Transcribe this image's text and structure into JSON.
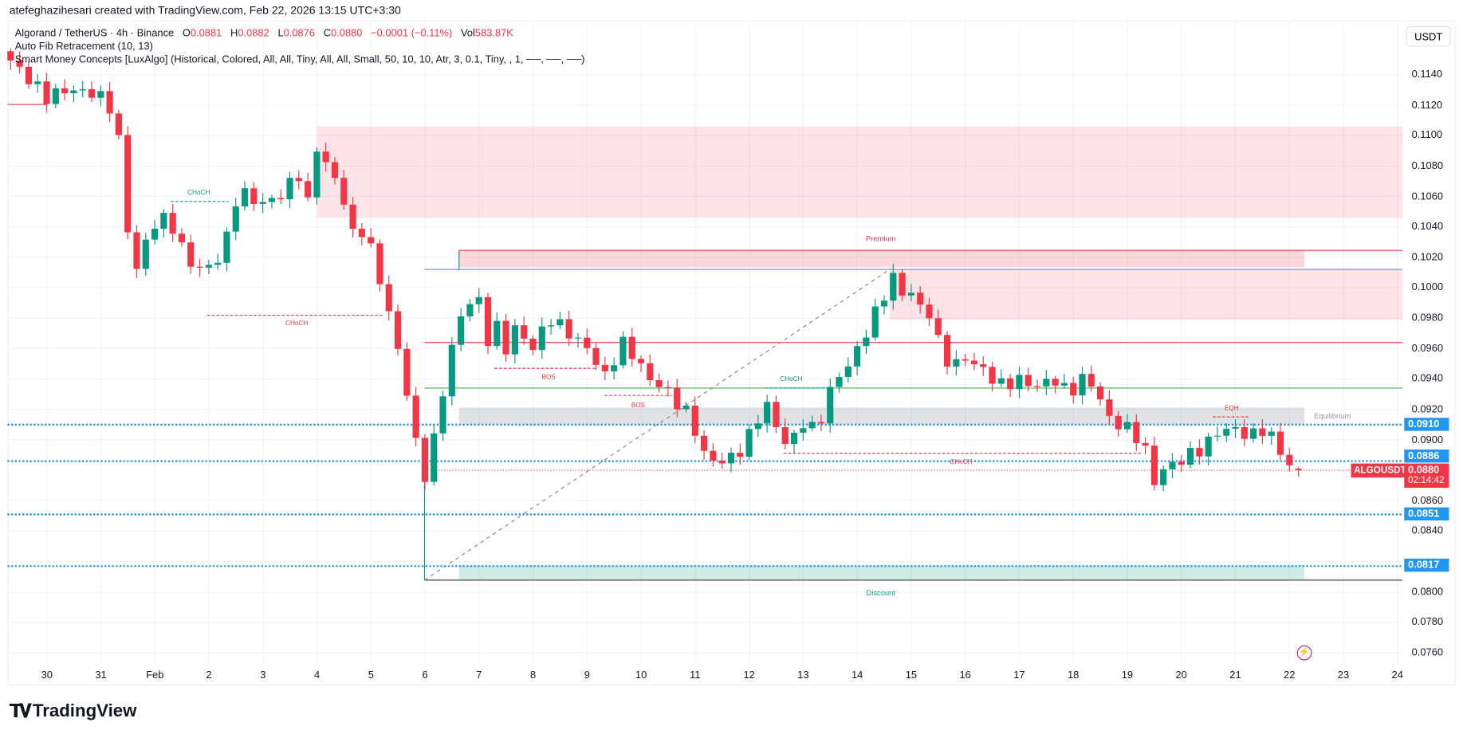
{
  "caption": "atefeghazihesari created with TradingView.com, Feb 22, 2026 13:15 UTC+3:30",
  "legend": {
    "symbol": "Algorand / TetherUS · 4h · Binance",
    "o_label": "O",
    "o": "0.0881",
    "h_label": "H",
    "h": "0.0882",
    "l_label": "L",
    "l": "0.0876",
    "c_label": "C",
    "c": "0.0880",
    "change": "−0.0001 (−0.11%)",
    "vol_label": "Vol",
    "vol": "583.87K",
    "indicator1": "Auto Fib Retracement (10, 13)",
    "indicator2": "Smart Money Concepts [LuxAlgo] (Historical, Colored, All, All, Tiny, All, All, Small, 50, 10, 10, Atr, 3, 0.1, Tiny, , 1, ──, ──, ──)"
  },
  "currency_button": "USDT",
  "price_tags": {
    "p0910": "0.0910",
    "p0886": "0.0886",
    "p0851": "0.0851",
    "p0817": "0.0817",
    "symbol_tag": "ALGOUSDT",
    "last": "0.0880",
    "countdown": "02:14:42"
  },
  "smc_labels": {
    "premium": "Premium",
    "equilibrium": "Equilibrium",
    "discount": "Discount",
    "choch1": "CHoCH",
    "choch2": "CHoCH",
    "bos1": "BOS",
    "bos2": "BOS",
    "choch3": "CHoCH",
    "choch4": "CHoCH",
    "eqh": "EQH"
  },
  "colors": {
    "up": "#089981",
    "down": "#f23645",
    "blue": "#2196f3",
    "premium": "#f23645",
    "discount": "#089981"
  },
  "logo": "TradingView",
  "chart_data": {
    "type": "candlestick",
    "title": "Algorand / TetherUS · 4h · Binance",
    "ylabel": "USDT",
    "ylim": [
      0.0745,
      0.1158
    ],
    "y_ticks": [
      "0.1140",
      "0.1120",
      "0.1100",
      "0.1080",
      "0.1060",
      "0.1040",
      "0.1020",
      "0.1000",
      "0.0980",
      "0.0960",
      "0.0940",
      "0.0920",
      "0.0900",
      "0.0860",
      "0.0840",
      "0.0800",
      "0.0780",
      "0.0760"
    ],
    "x_ticks": [
      "30",
      "31",
      "Feb",
      "2",
      "3",
      "4",
      "5",
      "6",
      "7",
      "8",
      "9",
      "10",
      "11",
      "12",
      "13",
      "14",
      "15",
      "16",
      "17",
      "18",
      "19",
      "20",
      "21",
      "22",
      "23",
      "24"
    ],
    "x_tick_days": [
      -2,
      -1,
      0,
      1,
      2,
      3,
      4,
      5,
      6,
      7,
      8,
      9,
      10,
      11,
      12,
      13,
      14,
      15,
      16,
      17,
      18,
      19,
      20,
      21,
      22,
      23
    ],
    "candle_interval_days": 0.1667,
    "start_day": -2.67,
    "end_day": 21.28,
    "price_path_days_since_feb1": [
      [
        -2.69,
        0.115
      ],
      [
        -2.0,
        0.1125
      ],
      [
        -1.66,
        0.113
      ],
      [
        -1.14,
        0.1128
      ],
      [
        -0.88,
        0.1122
      ],
      [
        -0.71,
        0.111
      ],
      [
        -0.62,
        0.108
      ],
      [
        -0.45,
        0.102
      ],
      [
        -0.31,
        0.101
      ],
      [
        -0.1,
        0.104
      ],
      [
        0.16,
        0.1045
      ],
      [
        0.33,
        0.104
      ],
      [
        0.59,
        0.1018
      ],
      [
        0.85,
        0.1012
      ],
      [
        1.11,
        0.1015
      ],
      [
        1.36,
        0.1035
      ],
      [
        1.54,
        0.1065
      ],
      [
        1.71,
        0.106
      ],
      [
        1.97,
        0.1055
      ],
      [
        2.31,
        0.106
      ],
      [
        2.66,
        0.1075
      ],
      [
        2.83,
        0.1055
      ],
      [
        3.01,
        0.1095
      ],
      [
        3.18,
        0.108
      ],
      [
        3.44,
        0.1065
      ],
      [
        3.7,
        0.103
      ],
      [
        3.87,
        0.104
      ],
      [
        4.04,
        0.102
      ],
      [
        4.21,
        0.1
      ],
      [
        4.39,
        0.0975
      ],
      [
        4.56,
        0.095
      ],
      [
        4.73,
        0.092
      ],
      [
        4.91,
        0.088
      ],
      [
        4.99,
        0.0876
      ],
      [
        5.08,
        0.0885
      ],
      [
        5.25,
        0.0915
      ],
      [
        5.42,
        0.095
      ],
      [
        5.6,
        0.0975
      ],
      [
        5.77,
        0.099
      ],
      [
        5.98,
        0.0995
      ],
      [
        6.11,
        0.096
      ],
      [
        6.29,
        0.098
      ],
      [
        6.46,
        0.0955
      ],
      [
        6.63,
        0.0975
      ],
      [
        6.98,
        0.096
      ],
      [
        7.32,
        0.098
      ],
      [
        7.67,
        0.097
      ],
      [
        8.01,
        0.096
      ],
      [
        8.36,
        0.094
      ],
      [
        8.62,
        0.0965
      ],
      [
        8.88,
        0.0955
      ],
      [
        9.14,
        0.094
      ],
      [
        9.4,
        0.0935
      ],
      [
        9.65,
        0.0925
      ],
      [
        9.91,
        0.0915
      ],
      [
        10.17,
        0.089
      ],
      [
        10.43,
        0.0885
      ],
      [
        10.78,
        0.089
      ],
      [
        11.04,
        0.0905
      ],
      [
        11.3,
        0.0925
      ],
      [
        11.55,
        0.0905
      ],
      [
        11.73,
        0.0895
      ],
      [
        11.99,
        0.0912
      ],
      [
        12.25,
        0.0905
      ],
      [
        12.42,
        0.0925
      ],
      [
        12.59,
        0.094
      ],
      [
        12.76,
        0.0945
      ],
      [
        13.02,
        0.096
      ],
      [
        13.28,
        0.098
      ],
      [
        13.45,
        0.099
      ],
      [
        13.63,
        0.101
      ],
      [
        13.8,
        0.0995
      ],
      [
        13.97,
        0.1
      ],
      [
        14.15,
        0.0985
      ],
      [
        14.28,
        0.0995
      ],
      [
        14.4,
        0.097
      ],
      [
        14.58,
        0.096
      ],
      [
        14.75,
        0.0945
      ],
      [
        14.92,
        0.0955
      ],
      [
        15.18,
        0.095
      ],
      [
        15.35,
        0.0945
      ],
      [
        15.7,
        0.0935
      ],
      [
        15.96,
        0.094
      ],
      [
        16.3,
        0.0935
      ],
      [
        16.65,
        0.094
      ],
      [
        16.91,
        0.093
      ],
      [
        17.17,
        0.094
      ],
      [
        17.43,
        0.0935
      ],
      [
        17.6,
        0.0915
      ],
      [
        17.86,
        0.091
      ],
      [
        18.12,
        0.0905
      ],
      [
        18.38,
        0.089
      ],
      [
        18.46,
        0.087
      ],
      [
        18.64,
        0.088
      ],
      [
        18.9,
        0.0885
      ],
      [
        19.15,
        0.089
      ],
      [
        19.41,
        0.0895
      ],
      [
        19.67,
        0.0905
      ],
      [
        19.93,
        0.0908
      ],
      [
        20.28,
        0.0902
      ],
      [
        20.54,
        0.0908
      ],
      [
        20.8,
        0.0895
      ],
      [
        20.97,
        0.0883
      ],
      [
        21.28,
        0.088
      ]
    ],
    "levels": {
      "premium_top": 0.10245,
      "fib_top": 0.1012,
      "red_level": 0.0964,
      "green_level": 0.0934,
      "equilibrium": 0.0921,
      "dotted": [
        0.091,
        0.0886,
        0.0851,
        0.0817
      ],
      "last": 0.088,
      "discount_bottom": 0.0806
    },
    "zones": [
      {
        "name": "supply-upper",
        "from_day": 3.0,
        "top": 0.1106,
        "bottom": 0.1046
      },
      {
        "name": "supply-lower",
        "from_day": 13.6,
        "top": 0.1012,
        "bottom": 0.0979
      }
    ]
  }
}
